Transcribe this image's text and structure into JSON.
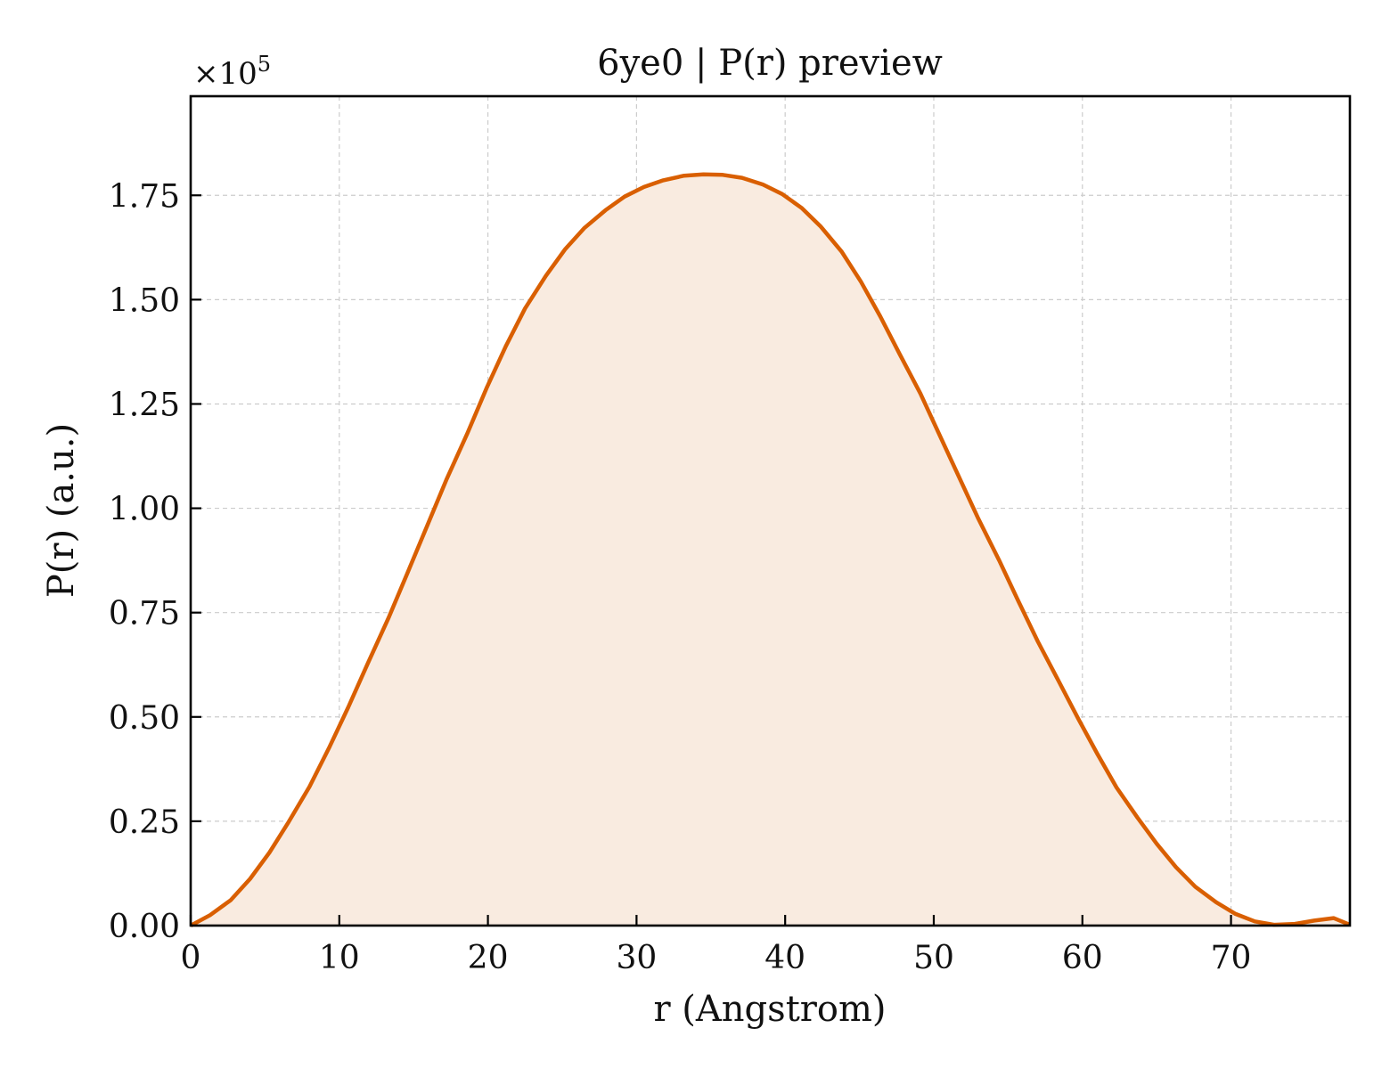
{
  "chart_data": {
    "type": "area",
    "title": "6ye0 | P(r) preview",
    "xlabel": "r (Angstrom)",
    "ylabel": "P(r) (a.u.)",
    "y_multiplier_label": "×10",
    "y_multiplier_exponent": "5",
    "xlim": [
      0,
      78
    ],
    "ylim": [
      0,
      1.9875
    ],
    "y_scale": 100000,
    "x_ticks": [
      0,
      10,
      20,
      30,
      40,
      50,
      60,
      70
    ],
    "x_tick_labels": [
      "0",
      "10",
      "20",
      "30",
      "40",
      "50",
      "60",
      "70"
    ],
    "y_ticks": [
      0,
      0.25,
      0.5,
      0.75,
      1.0,
      1.25,
      1.5,
      1.75
    ],
    "y_tick_labels": [
      "0.00",
      "0.25",
      "0.50",
      "0.75",
      "1.00",
      "1.25",
      "1.50",
      "1.75"
    ],
    "grid": true,
    "legend": "none",
    "line_color": "#d95f02",
    "fill_color": "#f9ebe0",
    "series": [
      {
        "x": [
          0,
          1.3,
          2.7,
          4.0,
          5.3,
          6.6,
          8.0,
          9.3,
          10.6,
          11.9,
          13.3,
          14.6,
          15.9,
          17.2,
          18.6,
          19.9,
          21.2,
          22.5,
          23.9,
          25.2,
          26.5,
          27.9,
          29.2,
          30.5,
          31.8,
          33.2,
          34.5,
          35.8,
          37.1,
          38.5,
          39.8,
          41.1,
          42.4,
          43.8,
          45.1,
          46.4,
          47.7,
          49.1,
          50.4,
          51.7,
          53.0,
          54.4,
          55.7,
          57.0,
          58.4,
          59.7,
          61.0,
          62.3,
          63.7,
          65.0,
          66.3,
          67.6,
          69.0,
          70.3,
          71.6,
          72.9,
          74.3,
          75.6,
          76.9,
          78.0
        ],
        "y": [
          0.0,
          0.025,
          0.061,
          0.112,
          0.175,
          0.249,
          0.333,
          0.425,
          0.523,
          0.627,
          0.736,
          0.846,
          0.957,
          1.068,
          1.178,
          1.287,
          1.388,
          1.479,
          1.557,
          1.621,
          1.672,
          1.714,
          1.747,
          1.77,
          1.786,
          1.797,
          1.8,
          1.799,
          1.792,
          1.776,
          1.753,
          1.72,
          1.675,
          1.615,
          1.543,
          1.46,
          1.37,
          1.275,
          1.175,
          1.075,
          0.975,
          0.875,
          0.777,
          0.681,
          0.586,
          0.497,
          0.412,
          0.331,
          0.259,
          0.196,
          0.14,
          0.093,
          0.056,
          0.028,
          0.01,
          0.002,
          0.004,
          0.012,
          0.018,
          0.002
        ]
      }
    ]
  }
}
